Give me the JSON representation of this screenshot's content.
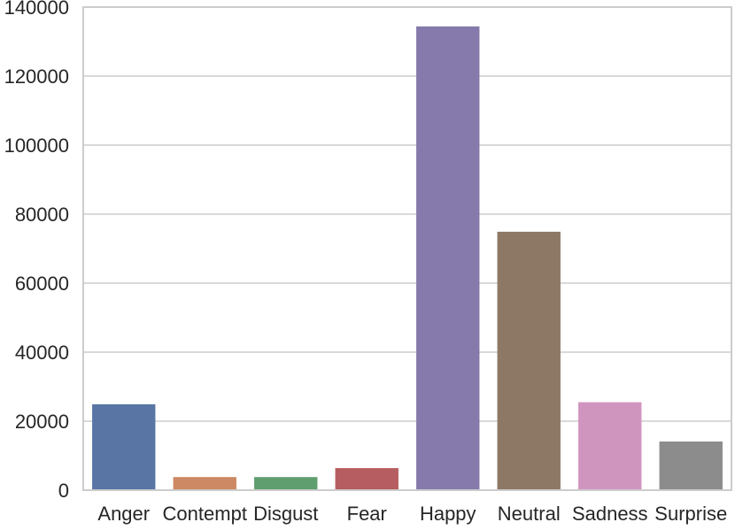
{
  "chart_data": {
    "type": "bar",
    "title": "",
    "xlabel": "",
    "ylabel": "",
    "categories": [
      "Anger",
      "Contempt",
      "Disgust",
      "Fear",
      "Happy",
      "Neutral",
      "Sadness",
      "Surprise"
    ],
    "values": [
      24900,
      3800,
      3800,
      6400,
      134400,
      74900,
      25500,
      14100
    ],
    "colors": [
      "#5975a4",
      "#cc8963",
      "#5f9e6e",
      "#b55d60",
      "#857aab",
      "#8d7866",
      "#d095bf",
      "#8c8c8c"
    ],
    "ylim": [
      0,
      140000
    ],
    "yticks": [
      0,
      20000,
      40000,
      60000,
      80000,
      100000,
      120000,
      140000
    ],
    "grid": "horizontal",
    "legend": "none",
    "background": "#ffffff",
    "grid_color": "#d9d9d9",
    "axis_color": "#cccccc"
  }
}
